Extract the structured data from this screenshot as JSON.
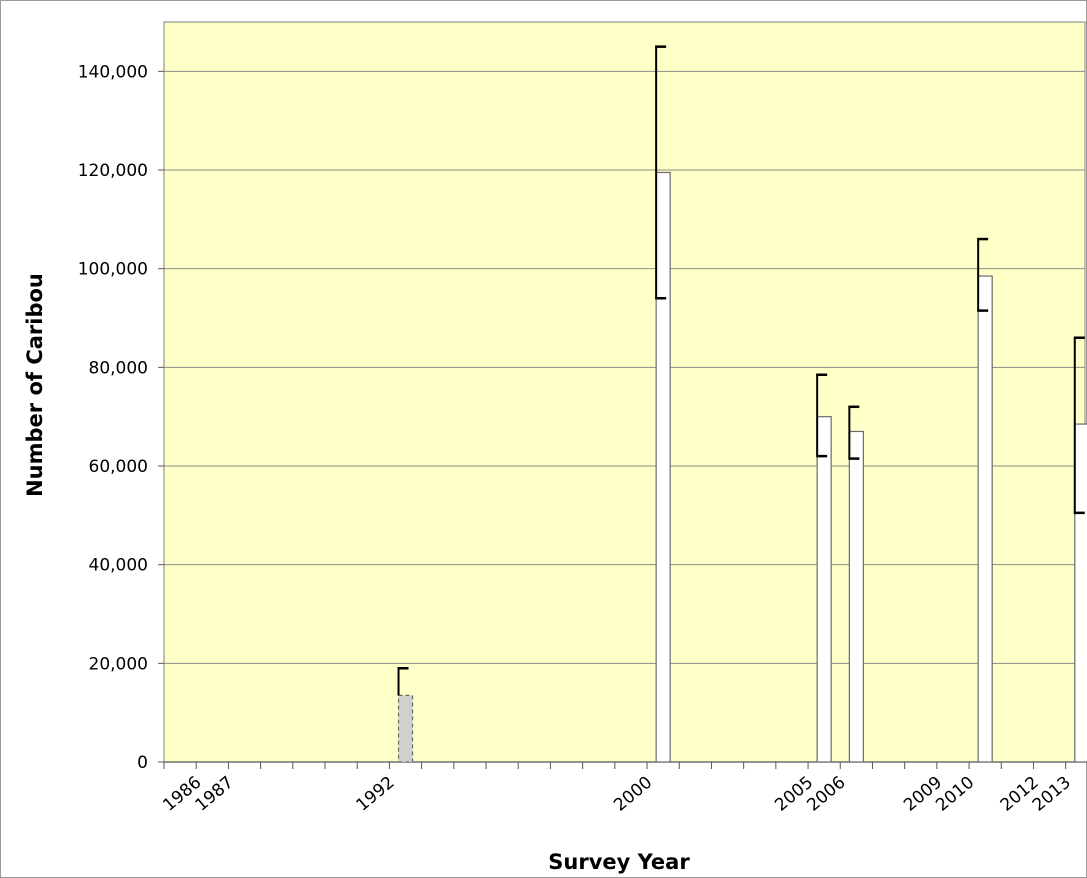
{
  "chart_data": {
    "type": "bar",
    "title": "",
    "xlabel": "Survey Year",
    "ylabel": "Number of Caribou",
    "xlim": [
      1985,
      2013.6
    ],
    "ylim": [
      0,
      150000
    ],
    "y_ticks": [
      0,
      20000,
      40000,
      60000,
      80000,
      100000,
      120000,
      140000
    ],
    "y_tick_labels": [
      "0",
      "20,000",
      "40,000",
      "60,000",
      "80,000",
      "100,000",
      "120,000",
      "140,000"
    ],
    "x_tick_labels": [
      "1986",
      "1987",
      "1992",
      "2000",
      "2005",
      "2006",
      "2009",
      "2010",
      "2012",
      "2013"
    ],
    "x_tick_positions": [
      1986,
      1987,
      1992,
      2000,
      2005,
      2006,
      2009,
      2010,
      2012,
      2013
    ],
    "grid": true,
    "legend": "none",
    "plot_background": "#ffffc8",
    "bars": [
      {
        "year": 1992,
        "value": 13500,
        "lower": 13500,
        "upper": 19000,
        "style": "dashed-gray"
      },
      {
        "year": 2000,
        "value": 119500,
        "lower": 94000,
        "upper": 145000,
        "style": "white"
      },
      {
        "year": 2005,
        "value": 70000,
        "lower": 62000,
        "upper": 78500,
        "style": "white"
      },
      {
        "year": 2006,
        "value": 67000,
        "lower": 61500,
        "upper": 72000,
        "style": "white"
      },
      {
        "year": 2010,
        "value": 98500,
        "lower": 91500,
        "upper": 106000,
        "style": "white"
      },
      {
        "year": 2013,
        "value": 68500,
        "lower": 50500,
        "upper": 86000,
        "style": "white"
      }
    ]
  }
}
